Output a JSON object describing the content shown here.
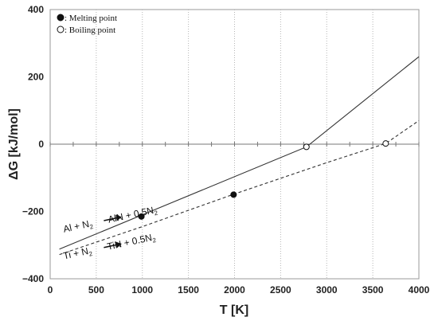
{
  "chart_data": {
    "type": "line",
    "xlabel": "T [K]",
    "ylabel": "ΔG [kJ/mol]",
    "xlim": [
      0,
      4000
    ],
    "ylim": [
      -400,
      400
    ],
    "x_ticks": [
      "0",
      "500",
      "1000",
      "1500",
      "2000",
      "2500",
      "3000",
      "3500",
      "4000"
    ],
    "y_ticks": [
      "400",
      "200",
      "0",
      "−200",
      "−400"
    ],
    "grid": "vertical dotted at x ticks",
    "series": [
      {
        "style": "solid",
        "color": "#333333",
        "x": [
          100,
          2780,
          4000
        ],
        "y": [
          -312,
          -8,
          260
        ]
      },
      {
        "style": "dashed",
        "color": "#333333",
        "x": [
          100,
          1000,
          2000,
          3000,
          3640,
          4000
        ],
        "y": [
          -328,
          -245,
          -148,
          -55,
          2,
          70
        ]
      }
    ],
    "markers": [
      {
        "type": "melting",
        "x": 990,
        "y": -215
      },
      {
        "type": "melting",
        "x": 1990,
        "y": -150
      },
      {
        "type": "boiling",
        "x": 2780,
        "y": -8
      },
      {
        "type": "boiling",
        "x": 3640,
        "y": 2
      }
    ],
    "legend": {
      "placement": "top-left",
      "entries": [
        {
          "marker": "filled-circle",
          "label": ": Melting point"
        },
        {
          "marker": "open-circle",
          "label": ": Boiling point"
        }
      ]
    },
    "annotations": [
      {
        "parts": [
          "Al + N",
          "2",
          " ",
          "AlN + 0.5N",
          "2"
        ],
        "x": 150,
        "y": -262
      },
      {
        "parts": [
          "Ti + N",
          "2",
          " ",
          "TiN + 0.5N",
          "2"
        ],
        "x": 150,
        "y": -342
      }
    ]
  }
}
